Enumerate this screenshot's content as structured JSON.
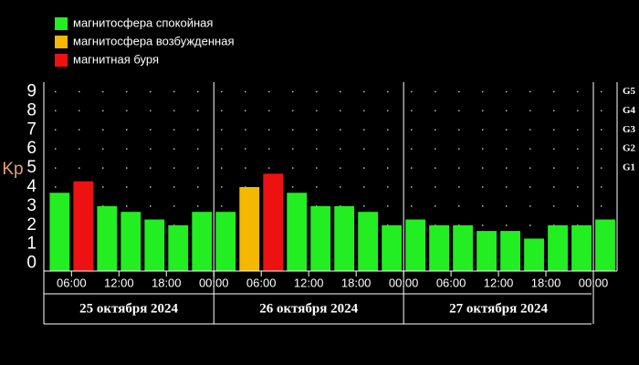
{
  "chart_data": {
    "type": "bar",
    "legend": [
      {
        "label": "магнитосфера спокойная",
        "color": "#22ee22"
      },
      {
        "label": "магнитосфера возбужденная",
        "color": "#f5b800"
      },
      {
        "label": "магнитная буря",
        "color": "#ee1111"
      }
    ],
    "y_label": "Kp",
    "x": [
      4.5,
      7.5,
      10.5,
      13.5,
      16.5,
      19.5,
      22.5,
      25.5,
      28.5,
      31.5,
      34.5,
      37.5,
      40.5,
      43.5,
      46.5,
      49.5,
      52.5,
      55.5,
      58.5,
      61.5,
      64.5,
      67.5,
      70.5,
      73.5
    ],
    "values": [
      3.7,
      4.3,
      3.0,
      2.7,
      2.3,
      2.0,
      2.7,
      2.7,
      4.0,
      4.7,
      3.7,
      3.0,
      3.0,
      2.7,
      2.0,
      2.3,
      2.0,
      2.0,
      1.7,
      1.7,
      1.3,
      2.0,
      2.0,
      2.3
    ],
    "colors": [
      "#22ee22",
      "#ee1111",
      "#22ee22",
      "#22ee22",
      "#22ee22",
      "#22ee22",
      "#22ee22",
      "#22ee22",
      "#f5b800",
      "#ee1111",
      "#22ee22",
      "#22ee22",
      "#22ee22",
      "#22ee22",
      "#22ee22",
      "#22ee22",
      "#22ee22",
      "#22ee22",
      "#22ee22",
      "#22ee22",
      "#22ee22",
      "#22ee22",
      "#22ee22",
      "#22ee22"
    ],
    "xlim": [
      2.5,
      75
    ],
    "xticks": [
      {
        "value": 6,
        "label": "06:00"
      },
      {
        "value": 12,
        "label": "12:00"
      },
      {
        "value": 18,
        "label": "18:00"
      },
      {
        "value": 24,
        "label": "00:00"
      },
      {
        "value": 30,
        "label": "06:00"
      },
      {
        "value": 36,
        "label": "12:00"
      },
      {
        "value": 42,
        "label": "18:00"
      },
      {
        "value": 48,
        "label": "00:00"
      },
      {
        "value": 54,
        "label": "06:00"
      },
      {
        "value": 60,
        "label": "12:00"
      },
      {
        "value": 66,
        "label": "18:00"
      },
      {
        "value": 72,
        "label": "00:00"
      }
    ],
    "day_edges": [
      24,
      48,
      72
    ],
    "days": [
      "25 октября 2024",
      "26 октября 2024",
      "27 октября 2024"
    ],
    "ylim": [
      -0.4,
      9.5
    ],
    "yticks": [
      0,
      1,
      2,
      3,
      4,
      5,
      6,
      7,
      8,
      9
    ],
    "y2lim": [
      -0.4,
      9.5
    ],
    "y2ticks": [
      {
        "value": 5,
        "label": "G1"
      },
      {
        "value": 6,
        "label": "G2"
      },
      {
        "value": 7,
        "label": "G3"
      },
      {
        "value": 8,
        "label": "G4"
      },
      {
        "value": 9,
        "label": "G5"
      }
    ],
    "grid": true
  }
}
